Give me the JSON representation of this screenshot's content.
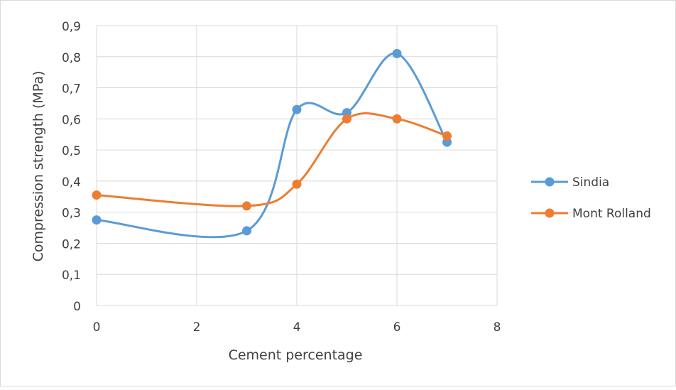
{
  "chart_data": {
    "type": "scatter",
    "xlabel": "Cement percentage",
    "ylabel": "Compression strength (MPa)",
    "xlim": [
      0,
      8
    ],
    "ylim": [
      0,
      0.9
    ],
    "x_ticks": [
      0,
      2,
      4,
      6,
      8
    ],
    "x_tick_labels": [
      "0",
      "2",
      "4",
      "6",
      "8"
    ],
    "y_ticks": [
      0,
      0.1,
      0.2,
      0.3,
      0.4,
      0.5,
      0.6,
      0.7,
      0.8,
      0.9
    ],
    "y_tick_labels": [
      "0",
      "0,1",
      "0,2",
      "0,3",
      "0,4",
      "0,5",
      "0,6",
      "0,7",
      "0,8",
      "0,9"
    ],
    "grid": true,
    "smooth_lines": true,
    "legend_position": "right",
    "series": [
      {
        "name": "Sindia",
        "color": "#5B9BD5",
        "x": [
          0,
          3,
          4,
          5,
          6,
          7
        ],
        "y": [
          0.275,
          0.24,
          0.63,
          0.62,
          0.81,
          0.525
        ]
      },
      {
        "name": "Mont Rolland",
        "color": "#ED7D31",
        "x": [
          0,
          3,
          4,
          5,
          6,
          7
        ],
        "y": [
          0.355,
          0.32,
          0.39,
          0.6,
          0.6,
          0.545
        ]
      }
    ]
  }
}
